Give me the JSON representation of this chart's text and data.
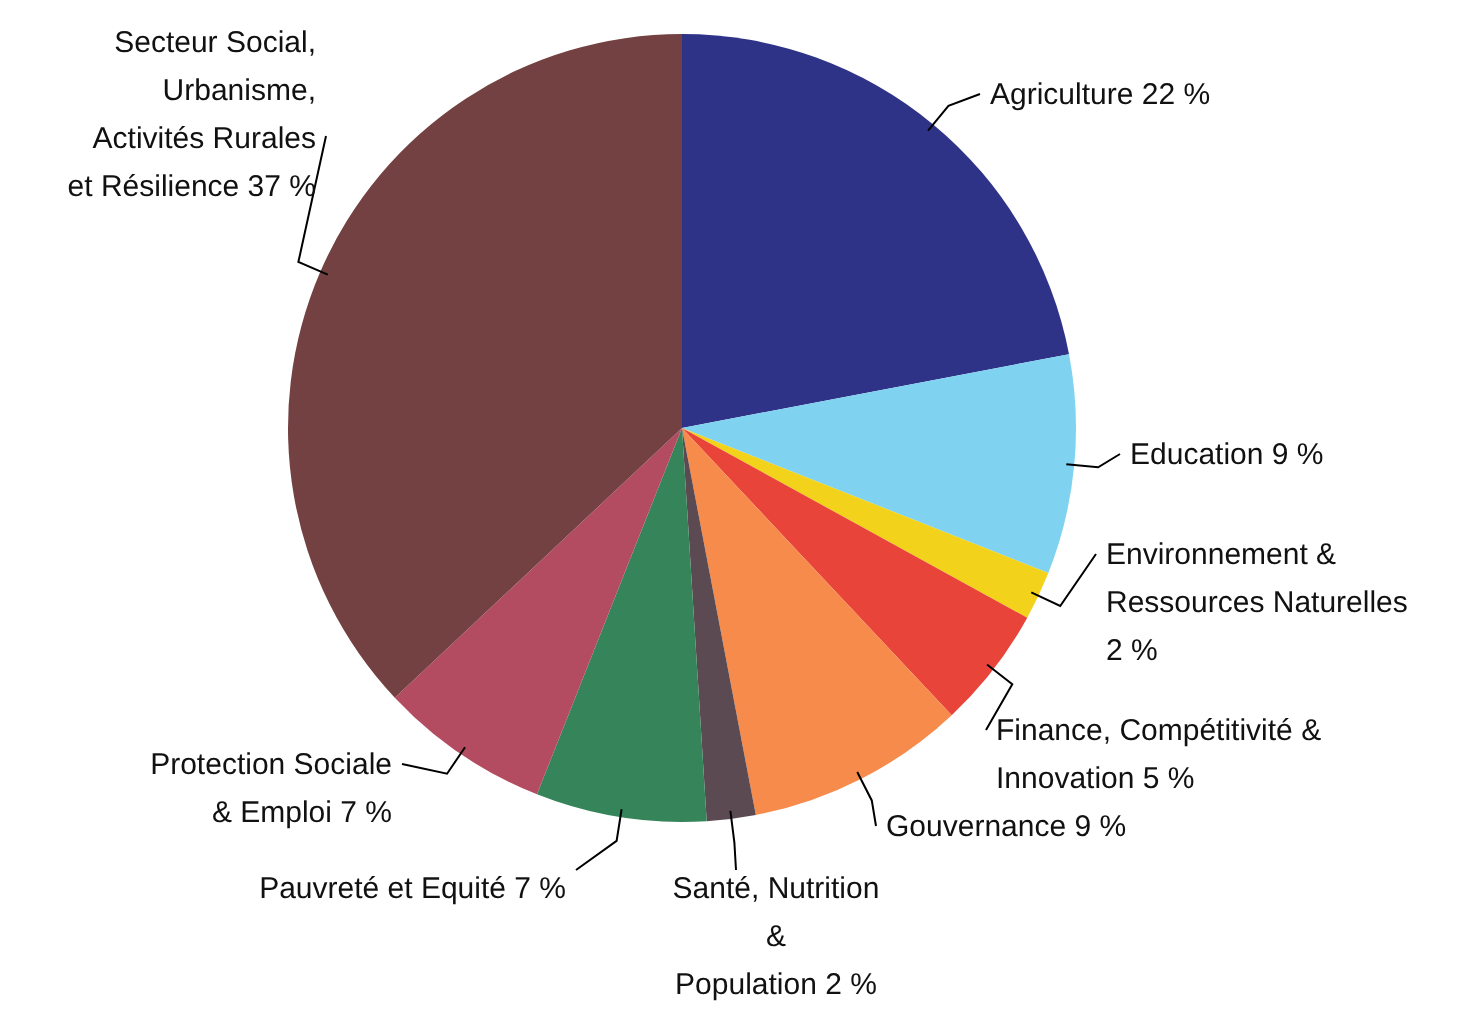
{
  "chart_data": {
    "type": "pie",
    "categories": [
      "Agriculture",
      "Education",
      "Environnement & Ressources Naturelles",
      "Finance, Compétitivité & Innovation",
      "Gouvernance",
      "Santé, Nutrition & Population",
      "Pauvreté et Equité",
      "Protection Sociale & Emploi",
      "Secteur Social, Urbanisme, Activités Rurales et Résilience"
    ],
    "values": [
      22,
      9,
      2,
      5,
      9,
      2,
      7,
      7,
      37
    ],
    "value_labels": [
      "22 %",
      "9 %",
      "2 %",
      "5 %",
      "9 %",
      "2 %",
      "7 %",
      "7 %",
      "37 %"
    ],
    "colors": [
      "#2e3388",
      "#7fd3f0",
      "#f2d21b",
      "#e8443a",
      "#f68b4c",
      "#5c4a52",
      "#36845a",
      "#b34b61",
      "#734141"
    ]
  }
}
